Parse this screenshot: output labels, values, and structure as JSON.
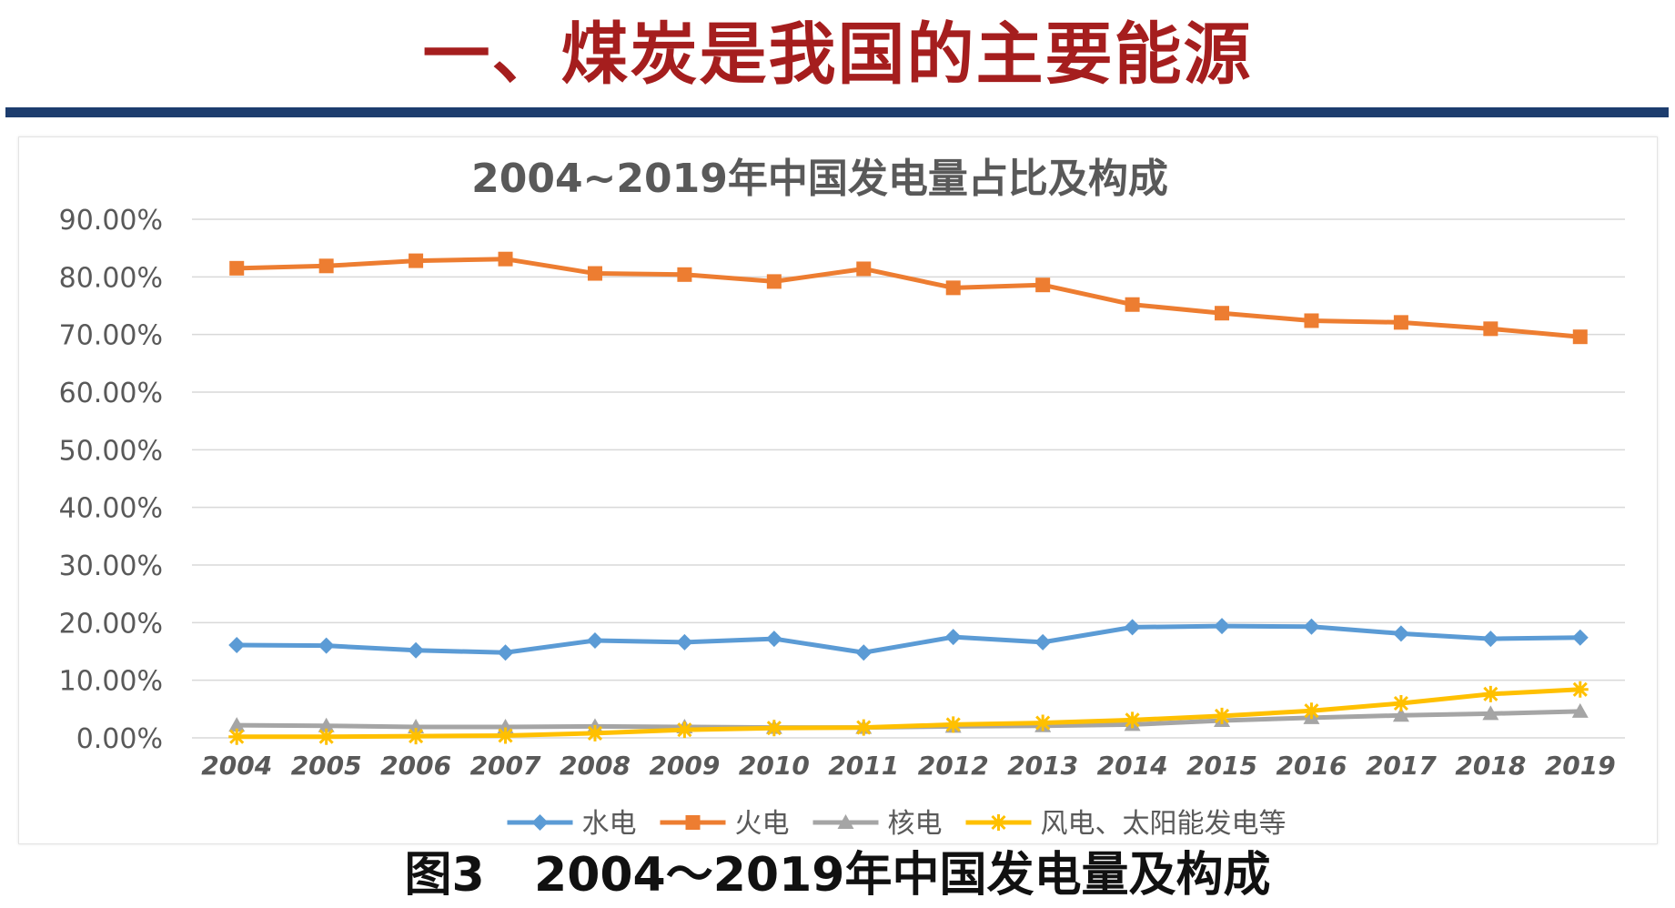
{
  "page": {
    "title": "一、煤炭是我国的主要能源",
    "caption": "图3   2004～2019年中国发电量及构成"
  },
  "colors": {
    "title": "#a51e1e",
    "rule": "#1d3d6e",
    "grid": "#d9d9d9",
    "axis_text": "#595959"
  },
  "chart_data": {
    "type": "line",
    "title": "2004~2019年中国发电量占比及构成",
    "xlabel": "",
    "ylabel": "",
    "ylim": [
      0,
      90
    ],
    "y_step": 10,
    "y_tick_format": "percent_2dp",
    "grid": true,
    "legend_position": "bottom",
    "categories": [
      "2004",
      "2005",
      "2006",
      "2007",
      "2008",
      "2009",
      "2010",
      "2011",
      "2012",
      "2013",
      "2014",
      "2015",
      "2016",
      "2017",
      "2018",
      "2019"
    ],
    "series": [
      {
        "name": "水电",
        "color": "#5b9bd5",
        "marker": "diamond",
        "values": [
          16.1,
          16.0,
          15.2,
          14.8,
          16.9,
          16.6,
          17.2,
          14.8,
          17.5,
          16.6,
          19.2,
          19.4,
          19.3,
          18.1,
          17.2,
          17.4
        ]
      },
      {
        "name": "火电",
        "color": "#ed7d31",
        "marker": "square",
        "values": [
          81.5,
          81.9,
          82.8,
          83.1,
          80.6,
          80.4,
          79.2,
          81.4,
          78.1,
          78.6,
          75.2,
          73.7,
          72.4,
          72.1,
          71.0,
          69.6
        ]
      },
      {
        "name": "核电",
        "color": "#a5a5a5",
        "marker": "triangle",
        "values": [
          2.2,
          2.1,
          1.9,
          1.9,
          2.0,
          1.9,
          1.8,
          1.8,
          2.0,
          2.1,
          2.3,
          3.0,
          3.5,
          3.9,
          4.2,
          4.6
        ]
      },
      {
        "name": "风电、太阳能发电等",
        "color": "#ffc000",
        "marker": "star",
        "values": [
          0.2,
          0.2,
          0.3,
          0.4,
          0.8,
          1.4,
          1.7,
          1.8,
          2.3,
          2.6,
          3.1,
          3.8,
          4.7,
          6.0,
          7.6,
          8.4
        ]
      }
    ]
  }
}
